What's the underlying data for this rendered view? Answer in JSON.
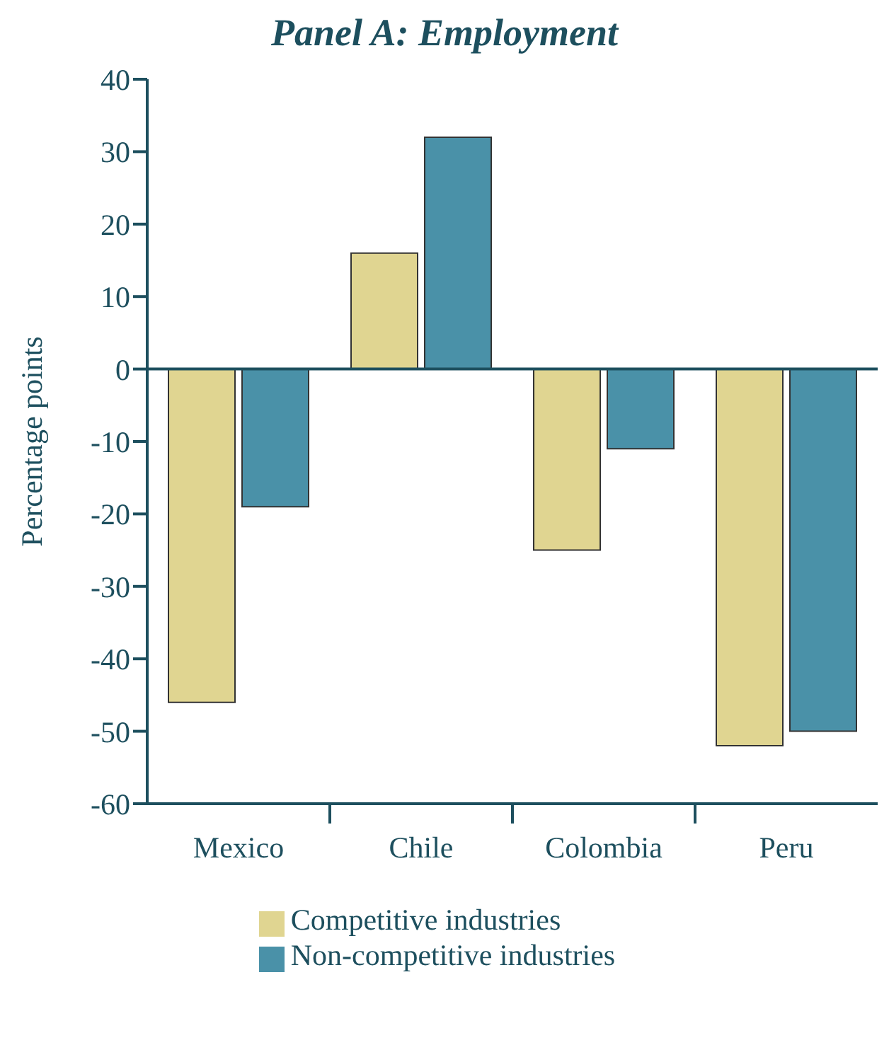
{
  "chart_data": {
    "type": "bar",
    "title": "Panel A: Employment",
    "ylabel": "Percentage points",
    "categories": [
      "Mexico",
      "Chile",
      "Colombia",
      "Peru"
    ],
    "series": [
      {
        "name": "Competitive industries",
        "color": "#e0d591",
        "values": [
          -46,
          16,
          -25,
          -52
        ]
      },
      {
        "name": "Non-competitive industries",
        "color": "#4a91a8",
        "values": [
          -19,
          32,
          -11,
          -50
        ]
      }
    ],
    "ylim": [
      -60,
      40
    ],
    "yticks": [
      -60,
      -50,
      -40,
      -30,
      -20,
      -10,
      0,
      10,
      20,
      30,
      40
    ],
    "grid": false,
    "legend": "bottom",
    "ref_lines": [
      {
        "axis": "y",
        "value": 0
      }
    ]
  }
}
